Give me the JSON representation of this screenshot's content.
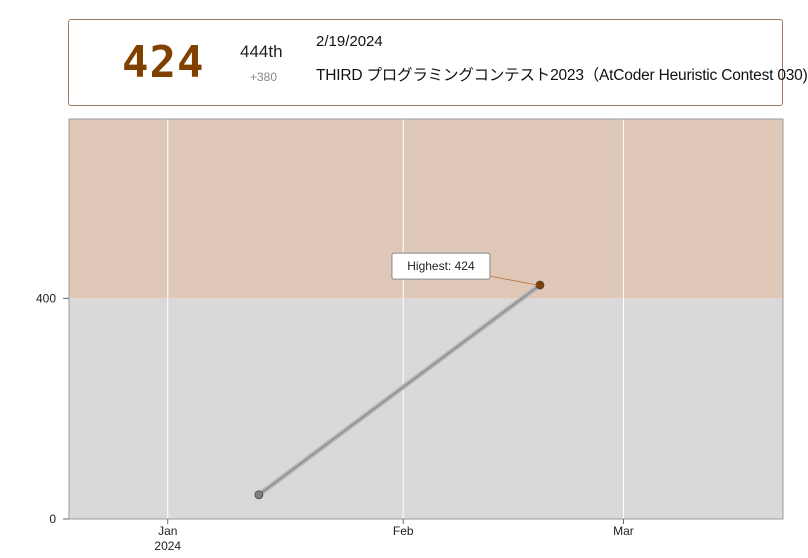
{
  "header": {
    "rating": "424",
    "rank": "444th",
    "diff": "+380",
    "date": "2/19/2024",
    "contest": "THIRD プログラミングコンテスト2023（AtCoder Heuristic Contest 030)"
  },
  "colors": {
    "band_brown": "#e0c8b8",
    "band_gray": "#d9d9d9",
    "rating_text": "#804000",
    "point_brown": "#804000",
    "point_gray": "#808080"
  },
  "chart_data": {
    "type": "line",
    "x_ticks": [
      {
        "date": "2024-01-01",
        "label": "Jan",
        "sublabel": "2024"
      },
      {
        "date": "2024-02-01",
        "label": "Feb",
        "sublabel": ""
      },
      {
        "date": "2024-03-01",
        "label": "Mar",
        "sublabel": ""
      }
    ],
    "y_ticks": [
      0,
      400
    ],
    "ylim": [
      0,
      725
    ],
    "xlim": [
      "2023-12-19",
      "2024-03-22"
    ],
    "bands": [
      {
        "from": 0,
        "to": 400,
        "color": "#d9d9d9"
      },
      {
        "from": 400,
        "to": 725,
        "color": "#e0c8b8"
      }
    ],
    "series": [
      {
        "points": [
          {
            "date": "2024-01-13",
            "rating": 44
          },
          {
            "date": "2024-02-19",
            "rating": 424
          }
        ]
      }
    ],
    "annotation": {
      "label": "Highest: 424",
      "date": "2024-02-19",
      "rating": 424
    },
    "grid": true
  }
}
